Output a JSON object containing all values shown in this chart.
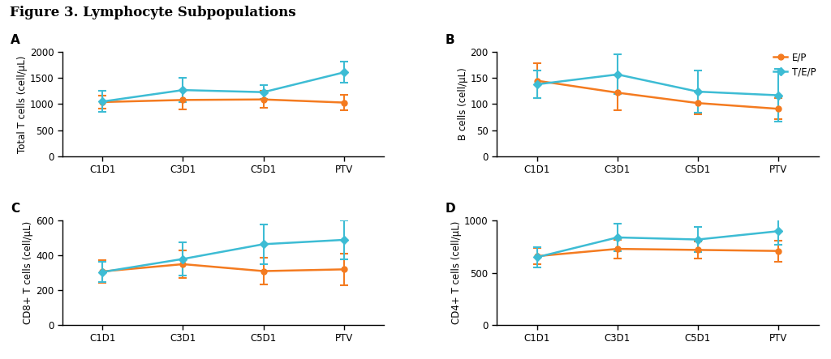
{
  "title": "Figure 3. Lymphocyte Subpopulations",
  "x_labels": [
    "C1D1",
    "C3D1",
    "C5D1",
    "PTV"
  ],
  "x_positions": [
    0,
    1,
    2,
    3
  ],
  "color_ep": "#F47B20",
  "color_tep": "#3DBCD4",
  "legend_labels": [
    "E/P",
    "T/E/P"
  ],
  "panel_A": {
    "label": "A",
    "ylabel": "Total T cells (cell/μL)",
    "ylim": [
      0,
      2000
    ],
    "yticks": [
      0,
      500,
      1000,
      1500,
      2000
    ],
    "ep_mean": [
      1040,
      1080,
      1090,
      1030
    ],
    "ep_err": [
      130,
      180,
      160,
      150
    ],
    "tep_mean": [
      1050,
      1270,
      1230,
      1610
    ],
    "tep_err": [
      200,
      230,
      130,
      200
    ]
  },
  "panel_B": {
    "label": "B",
    "ylabel": "B cells (cell/μL)",
    "ylim": [
      0,
      200
    ],
    "yticks": [
      0,
      50,
      100,
      150,
      200
    ],
    "ep_mean": [
      145,
      122,
      102,
      91
    ],
    "ep_err": [
      33,
      33,
      22,
      20
    ],
    "tep_mean": [
      138,
      157,
      124,
      117
    ],
    "tep_err": [
      27,
      38,
      40,
      50
    ]
  },
  "panel_C": {
    "label": "C",
    "ylabel": "CD8+ T cells (cell/μL)",
    "ylim": [
      0,
      600
    ],
    "yticks": [
      0,
      200,
      400,
      600
    ],
    "ep_mean": [
      308,
      350,
      310,
      320
    ],
    "ep_err": [
      65,
      80,
      75,
      90
    ],
    "tep_mean": [
      305,
      380,
      465,
      490
    ],
    "tep_err": [
      60,
      95,
      115,
      110
    ]
  },
  "panel_D": {
    "label": "D",
    "ylabel": "CD4+ T cells (cell/μL)",
    "ylim": [
      0,
      1000
    ],
    "yticks": [
      0,
      500,
      1000
    ],
    "ep_mean": [
      660,
      730,
      720,
      710
    ],
    "ep_err": [
      80,
      90,
      80,
      100
    ],
    "tep_mean": [
      650,
      840,
      820,
      900
    ],
    "tep_err": [
      100,
      130,
      120,
      130
    ]
  }
}
